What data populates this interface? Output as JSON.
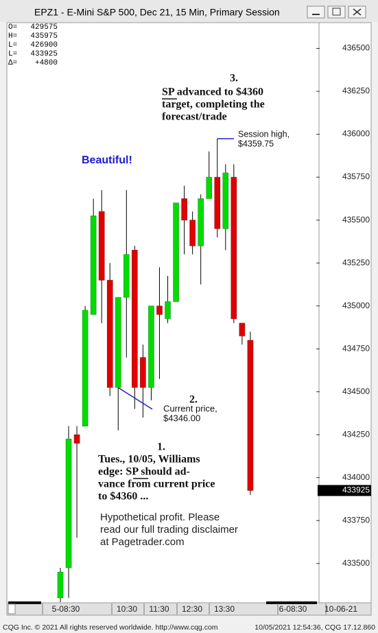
{
  "window": {
    "title": "EPZ1 - E-Mini S&P 500, Dec 21, 15 Min, Primary Session"
  },
  "chart_data": {
    "type": "candlestick",
    "open": [
      433300,
      433475,
      434250,
      434300,
      434950,
      435550,
      435150,
      434525,
      435050,
      435325,
      434700,
      434525,
      435000,
      434925,
      435025,
      435625,
      435500,
      435350,
      435625,
      435750,
      435450,
      435750,
      434900,
      434800
    ],
    "high": [
      433475,
      434300,
      434300,
      435000,
      435625,
      435675,
      435250,
      435050,
      435675,
      435350,
      434775,
      435000,
      435225,
      435175,
      435600,
      435700,
      435550,
      435650,
      435900,
      435975,
      435825,
      435825,
      434900,
      434850
    ],
    "low": [
      433275,
      433300,
      433650,
      434300,
      434950,
      434900,
      434475,
      434275,
      434700,
      434400,
      434350,
      434450,
      434575,
      434900,
      435025,
      435300,
      435300,
      435125,
      435625,
      435400,
      435325,
      434900,
      434775,
      433900
    ],
    "close": [
      433450,
      434225,
      434200,
      434975,
      435525,
      435150,
      434525,
      435050,
      435300,
      434525,
      434525,
      435000,
      434950,
      435025,
      435600,
      435500,
      435350,
      435625,
      435750,
      435450,
      435775,
      434925,
      434825,
      433925
    ],
    "up_color": "#00dc00",
    "down_color": "#e00000",
    "ylim": [
      433275,
      436650
    ],
    "yticks": [
      433500,
      433750,
      434000,
      434250,
      434500,
      434750,
      435000,
      435250,
      435500,
      435750,
      436000,
      436250,
      436500
    ],
    "xtick_labels": [
      "5-08:30",
      "10:30",
      "11:30",
      "12:30",
      "13:30",
      "6-08:30",
      "10-06-21"
    ],
    "info": [
      [
        "O=",
        "429575"
      ],
      [
        "H=",
        "435975"
      ],
      [
        "L=",
        "426900"
      ],
      [
        "L=",
        "433925"
      ],
      [
        "Δ=",
        "+4800"
      ]
    ],
    "annotations": {
      "n3": "3.",
      "a3": [
        "SP advanced to $4360",
        "target, completing the",
        "forecast/trade"
      ],
      "high": [
        "Session high,",
        "$4359.75"
      ],
      "beautiful": "Beautiful!",
      "n2": "2.",
      "a2": [
        "Current price,",
        "$4346.00"
      ],
      "n1": "1.",
      "a1": [
        "Tues., 10/05, Williams",
        "edge: SP should ad-",
        "vance from current price",
        "to $4360 ..."
      ],
      "disclaimer": [
        "Hypothetical profit. Please",
        "read our full trading disclaimer",
        "at Pagetrader.com"
      ]
    }
  },
  "footer": {
    "left": "CQG Inc. © 2021 All rights reserved worldwide. http://www.cqg.com",
    "right": "10/05/2021 12:54:36, CQG 17.12.860"
  }
}
